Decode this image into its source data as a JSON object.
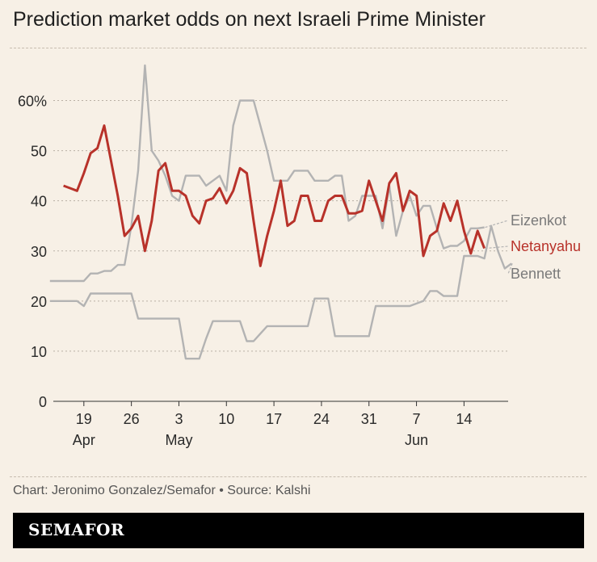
{
  "title": "Prediction market odds on next Israeli Prime Minister",
  "source": "Chart: Jeronimo Gonzalez/Semafor • Source: Kalshi",
  "brand": "SEMAFOR",
  "colors": {
    "background": "#f7f0e6",
    "grid": "#b9b0a5",
    "gray_series": "#b3b3b3",
    "netanyahu": "#b8322a",
    "brandbar": "#000000"
  },
  "chart_data": {
    "type": "line",
    "y_ticks": [
      "0",
      "10",
      "20",
      "30",
      "40",
      "50",
      "60%"
    ],
    "ylim": [
      0,
      70
    ],
    "x_ticks": [
      {
        "label": "19",
        "sub": "Apr",
        "x": 4
      },
      {
        "label": "26",
        "sub": "",
        "x": 11
      },
      {
        "label": "3",
        "sub": "May",
        "x": 18
      },
      {
        "label": "10",
        "sub": "",
        "x": 25
      },
      {
        "label": "17",
        "sub": "",
        "x": 32
      },
      {
        "label": "24",
        "sub": "",
        "x": 39
      },
      {
        "label": "31",
        "sub": "",
        "x": 46
      },
      {
        "label": "7",
        "sub": "Jun",
        "x": 53
      },
      {
        "label": "14",
        "sub": "",
        "x": 60
      }
    ],
    "xlim": [
      -0.5,
      66.5
    ],
    "grid": true,
    "series": [
      {
        "name": "Eizenkot",
        "color": "#b3b3b3",
        "points": [
          [
            -1,
            24
          ],
          [
            0,
            24
          ],
          [
            1,
            24
          ],
          [
            2,
            24
          ],
          [
            3,
            24
          ],
          [
            4,
            24
          ],
          [
            5,
            25.5
          ],
          [
            6,
            25.5
          ],
          [
            7,
            26
          ],
          [
            8,
            26
          ],
          [
            9,
            27.2
          ],
          [
            10,
            27.2
          ],
          [
            11,
            35
          ],
          [
            12,
            46
          ],
          [
            13,
            67
          ],
          [
            14,
            50
          ],
          [
            15,
            48
          ],
          [
            16,
            45
          ],
          [
            17,
            41
          ],
          [
            18,
            40
          ],
          [
            19,
            45
          ],
          [
            20,
            45
          ],
          [
            21,
            45
          ],
          [
            22,
            43
          ],
          [
            23,
            44
          ],
          [
            24,
            45
          ],
          [
            25,
            42
          ],
          [
            26,
            55
          ],
          [
            27,
            60
          ],
          [
            28,
            60
          ],
          [
            29,
            60
          ],
          [
            30,
            55
          ],
          [
            31,
            50
          ],
          [
            32,
            44
          ],
          [
            33,
            44
          ],
          [
            34,
            44
          ],
          [
            35,
            46
          ],
          [
            36,
            46
          ],
          [
            37,
            46
          ],
          [
            38,
            44
          ],
          [
            39,
            44
          ],
          [
            40,
            44
          ],
          [
            41,
            45
          ],
          [
            42,
            45
          ],
          [
            43,
            36
          ],
          [
            44,
            37
          ],
          [
            45,
            41
          ],
          [
            46,
            41
          ],
          [
            47,
            41
          ],
          [
            48,
            34.5
          ],
          [
            49,
            43
          ],
          [
            50,
            33
          ],
          [
            51,
            38
          ],
          [
            52,
            41
          ],
          [
            53,
            37
          ],
          [
            54,
            39
          ],
          [
            55,
            39
          ],
          [
            56,
            34.5
          ],
          [
            57,
            30.5
          ],
          [
            58,
            31
          ],
          [
            59,
            31
          ],
          [
            60,
            32
          ],
          [
            61,
            34.5
          ],
          [
            62,
            34.5
          ],
          [
            63,
            34.7
          ]
        ],
        "end_label": "Eizenkot"
      },
      {
        "name": "Netanyahu",
        "color": "#b8322a",
        "points": [
          [
            1,
            43
          ],
          [
            2,
            42.5
          ],
          [
            3,
            42
          ],
          [
            4,
            45.5
          ],
          [
            5,
            49.5
          ],
          [
            6,
            50.5
          ],
          [
            7,
            55
          ],
          [
            8,
            48
          ],
          [
            9,
            41
          ],
          [
            10,
            33
          ],
          [
            11,
            34.5
          ],
          [
            12,
            37
          ],
          [
            13,
            30
          ],
          [
            14,
            36
          ],
          [
            15,
            46
          ],
          [
            16,
            47.5
          ],
          [
            17,
            42
          ],
          [
            18,
            42
          ],
          [
            19,
            41
          ],
          [
            20,
            37
          ],
          [
            21,
            35.5
          ],
          [
            22,
            40
          ],
          [
            23,
            40.5
          ],
          [
            24,
            42.5
          ],
          [
            25,
            39.5
          ],
          [
            26,
            42
          ],
          [
            27,
            46.5
          ],
          [
            28,
            45.5
          ],
          [
            29,
            36
          ],
          [
            30,
            27
          ],
          [
            31,
            33
          ],
          [
            32,
            38
          ],
          [
            33,
            44
          ],
          [
            34,
            35
          ],
          [
            35,
            36
          ],
          [
            36,
            41
          ],
          [
            37,
            41
          ],
          [
            38,
            36
          ],
          [
            39,
            36
          ],
          [
            40,
            40
          ],
          [
            41,
            41
          ],
          [
            42,
            41
          ],
          [
            43,
            37.5
          ],
          [
            44,
            37.5
          ],
          [
            45,
            38
          ],
          [
            46,
            44
          ],
          [
            47,
            40
          ],
          [
            48,
            36
          ],
          [
            49,
            43.5
          ],
          [
            50,
            45.5
          ],
          [
            51,
            38
          ],
          [
            52,
            42
          ],
          [
            53,
            41
          ],
          [
            54,
            29
          ],
          [
            55,
            33
          ],
          [
            56,
            34
          ],
          [
            57,
            39.5
          ],
          [
            58,
            36
          ],
          [
            59,
            40
          ],
          [
            60,
            34
          ],
          [
            61,
            29.5
          ],
          [
            62,
            34
          ],
          [
            63,
            30.5
          ]
        ],
        "end_label": "Netanyahu"
      },
      {
        "name": "Bennett",
        "color": "#b3b3b3",
        "points": [
          [
            -1,
            20
          ],
          [
            0,
            20
          ],
          [
            1,
            20
          ],
          [
            2,
            20
          ],
          [
            3,
            20
          ],
          [
            4,
            19
          ],
          [
            5,
            21.5
          ],
          [
            6,
            21.5
          ],
          [
            7,
            21.5
          ],
          [
            8,
            21.5
          ],
          [
            9,
            21.5
          ],
          [
            10,
            21.5
          ],
          [
            11,
            21.5
          ],
          [
            12,
            16.5
          ],
          [
            13,
            16.5
          ],
          [
            14,
            16.5
          ],
          [
            15,
            16.5
          ],
          [
            16,
            16.5
          ],
          [
            17,
            16.5
          ],
          [
            18,
            16.5
          ],
          [
            19,
            8.5
          ],
          [
            20,
            8.5
          ],
          [
            21,
            8.5
          ],
          [
            22,
            12.5
          ],
          [
            23,
            16
          ],
          [
            24,
            16
          ],
          [
            25,
            16
          ],
          [
            26,
            16
          ],
          [
            27,
            16
          ],
          [
            28,
            12
          ],
          [
            29,
            12
          ],
          [
            30,
            13.5
          ],
          [
            31,
            15
          ],
          [
            32,
            15
          ],
          [
            33,
            15
          ],
          [
            34,
            15
          ],
          [
            35,
            15
          ],
          [
            36,
            15
          ],
          [
            37,
            15
          ],
          [
            38,
            20.5
          ],
          [
            39,
            20.5
          ],
          [
            40,
            20.5
          ],
          [
            41,
            13
          ],
          [
            42,
            13
          ],
          [
            43,
            13
          ],
          [
            44,
            13
          ],
          [
            45,
            13
          ],
          [
            46,
            13
          ],
          [
            47,
            19
          ],
          [
            48,
            19
          ],
          [
            49,
            19
          ],
          [
            50,
            19
          ],
          [
            51,
            19
          ],
          [
            52,
            19
          ],
          [
            53,
            19.5
          ],
          [
            54,
            20
          ],
          [
            55,
            22
          ],
          [
            56,
            22
          ],
          [
            57,
            21
          ],
          [
            58,
            21
          ],
          [
            59,
            21
          ],
          [
            60,
            29
          ],
          [
            61,
            29
          ],
          [
            62,
            29
          ],
          [
            63,
            28.5
          ],
          [
            64,
            35
          ],
          [
            65,
            30
          ],
          [
            66,
            26.5
          ],
          [
            67,
            27.5
          ]
        ],
        "end_label": "Bennett"
      }
    ]
  }
}
